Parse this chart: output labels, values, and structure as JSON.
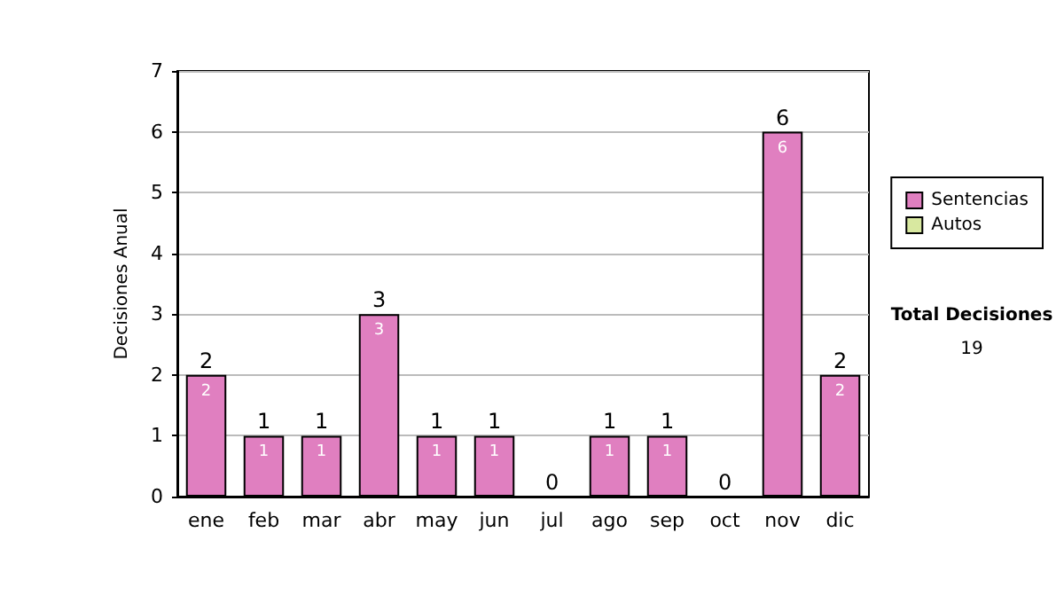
{
  "chart_data": {
    "type": "bar",
    "ylabel": "Decisiones Anual",
    "categories": [
      "ene",
      "feb",
      "mar",
      "abr",
      "may",
      "jun",
      "jul",
      "ago",
      "sep",
      "oct",
      "nov",
      "dic"
    ],
    "series": [
      {
        "name": "Sentencias",
        "color": "#e07fc0",
        "values": [
          2,
          1,
          1,
          3,
          1,
          1,
          0,
          1,
          1,
          0,
          6,
          2
        ],
        "value_labels": [
          "2",
          "1",
          "1",
          "3",
          "1",
          "1",
          null,
          "1",
          "1",
          null,
          "6",
          "2"
        ]
      },
      {
        "name": "Autos",
        "color": "#d8e8a0",
        "values": [
          0,
          0,
          0,
          0,
          0,
          0,
          0,
          0,
          0,
          0,
          0,
          0
        ]
      }
    ],
    "stacked": true,
    "totals": [
      "2",
      "1",
      "1",
      "3",
      "1",
      "1",
      "0",
      "1",
      "1",
      "0",
      "6",
      "2"
    ],
    "ylim": [
      0,
      7
    ],
    "yticks": [
      0,
      1,
      2,
      3,
      4,
      5,
      6,
      7
    ],
    "grid": "y",
    "legend": "right",
    "annotations": [
      "Total Decisiones",
      "19"
    ]
  }
}
